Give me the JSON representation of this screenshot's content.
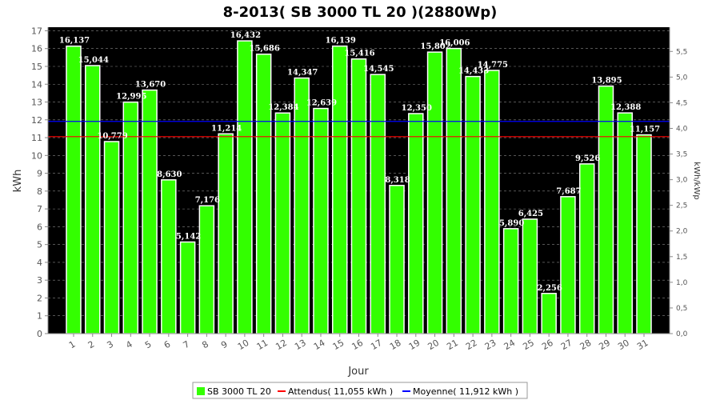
{
  "chart_data": {
    "type": "bar",
    "title": "8-2013( SB 3000 TL 20 )(2880Wp)",
    "xlabel": "Jour",
    "ylabel": "kWh",
    "y2label": "kWh/kWp",
    "ylim": [
      0,
      17.2
    ],
    "yticks": [
      "0",
      "1",
      "2",
      "3",
      "4",
      "5",
      "6",
      "7",
      "8",
      "9",
      "10",
      "11",
      "12",
      "13",
      "14",
      "15",
      "16",
      "17"
    ],
    "y2ticks": [
      "0,0",
      "0,5",
      "1,0",
      "1,5",
      "2,0",
      "2,5",
      "3,0",
      "3,5",
      "4,0",
      "4,5",
      "5,0",
      "5,5"
    ],
    "y2_scale_kwp": 2.88,
    "grid": true,
    "legend_position": "bottom",
    "categories": [
      "1",
      "2",
      "3",
      "4",
      "5",
      "6",
      "7",
      "8",
      "9",
      "10",
      "11",
      "12",
      "13",
      "14",
      "15",
      "16",
      "17",
      "18",
      "19",
      "20",
      "21",
      "22",
      "23",
      "24",
      "25",
      "26",
      "27",
      "28",
      "29",
      "30",
      "31"
    ],
    "series": [
      {
        "name": "SB 3000 TL 20",
        "color": "#33ff00",
        "values": [
          16.137,
          15.044,
          10.779,
          12.995,
          13.67,
          8.63,
          5.142,
          7.176,
          11.214,
          16.432,
          15.686,
          12.384,
          14.347,
          12.639,
          16.139,
          15.416,
          14.545,
          8.318,
          12.35,
          15.802,
          16.006,
          14.433,
          14.775,
          5.89,
          6.425,
          2.256,
          7.687,
          9.526,
          13.895,
          12.388,
          11.157
        ],
        "labels": [
          "16,137",
          "15,044",
          "10,779",
          "12,995",
          "13,670",
          "8,630",
          "5,142",
          "7,176",
          "11,214",
          "16,432",
          "15,686",
          "12,384",
          "14,347",
          "12,639",
          "16,139",
          "15,416",
          "14,545",
          "8,318",
          "12,350",
          "15,802",
          "16,006",
          "14,433",
          "14,775",
          "5,890",
          "6,425",
          "2,256",
          "7,687",
          "9,526",
          "13,895",
          "12,388",
          "11,157"
        ]
      }
    ],
    "reference_lines": [
      {
        "name": "Attendus( 11,055 kWh )",
        "value": 11.055,
        "color": "#ff0000"
      },
      {
        "name": "Moyenne( 11,912 kWh )",
        "value": 11.912,
        "color": "#0000ff"
      }
    ]
  }
}
